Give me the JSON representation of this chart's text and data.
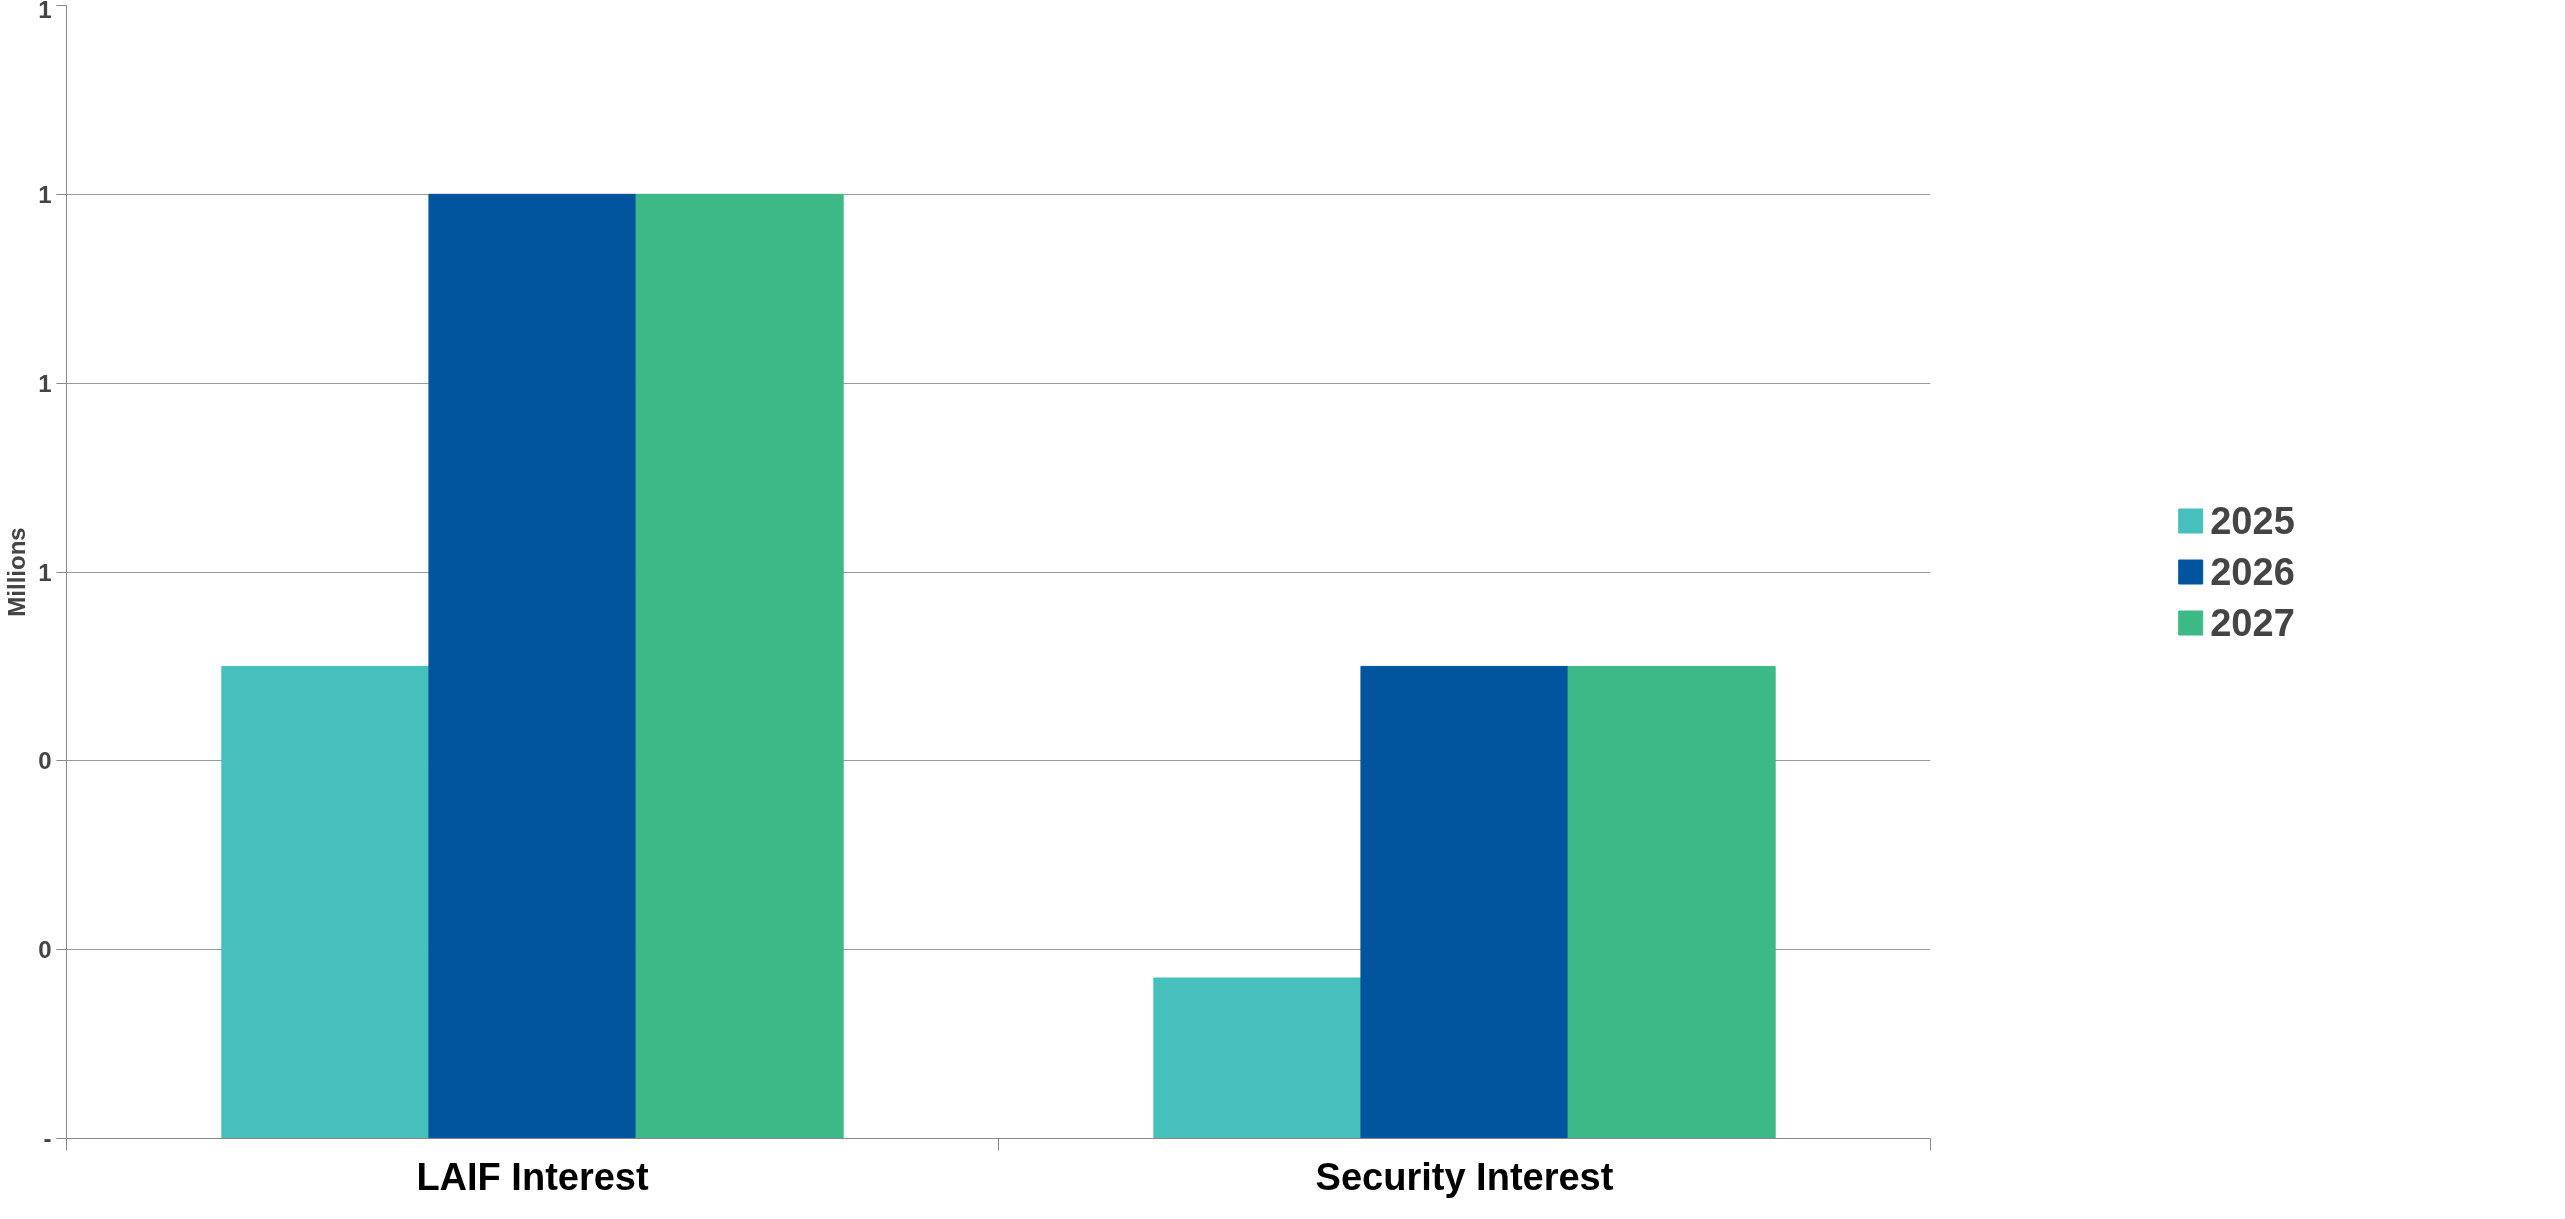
{
  "chart_data": {
    "type": "bar",
    "ylabel": "Millions",
    "categories": [
      "LAIF Interest",
      "Security Interest"
    ],
    "series": [
      {
        "name": "2025",
        "color": "#45c0bd",
        "values": [
          0.5,
          0.17
        ]
      },
      {
        "name": "2026",
        "color": "#00559e",
        "values": [
          1.0,
          0.5
        ]
      },
      {
        "name": "2027",
        "color": "#3db887",
        "values": [
          1.0,
          0.5
        ]
      }
    ],
    "ylim": [
      0,
      1.2
    ],
    "yticks": [
      {
        "value": 0,
        "label": "-"
      },
      {
        "value": 0.2,
        "label": "0"
      },
      {
        "value": 0.4,
        "label": "0"
      },
      {
        "value": 0.6,
        "label": "1"
      },
      {
        "value": 0.8,
        "label": "1"
      },
      {
        "value": 1.0,
        "label": "1"
      },
      {
        "value": 1.2,
        "label": "1"
      }
    ],
    "grid": "y",
    "legend": "right"
  }
}
